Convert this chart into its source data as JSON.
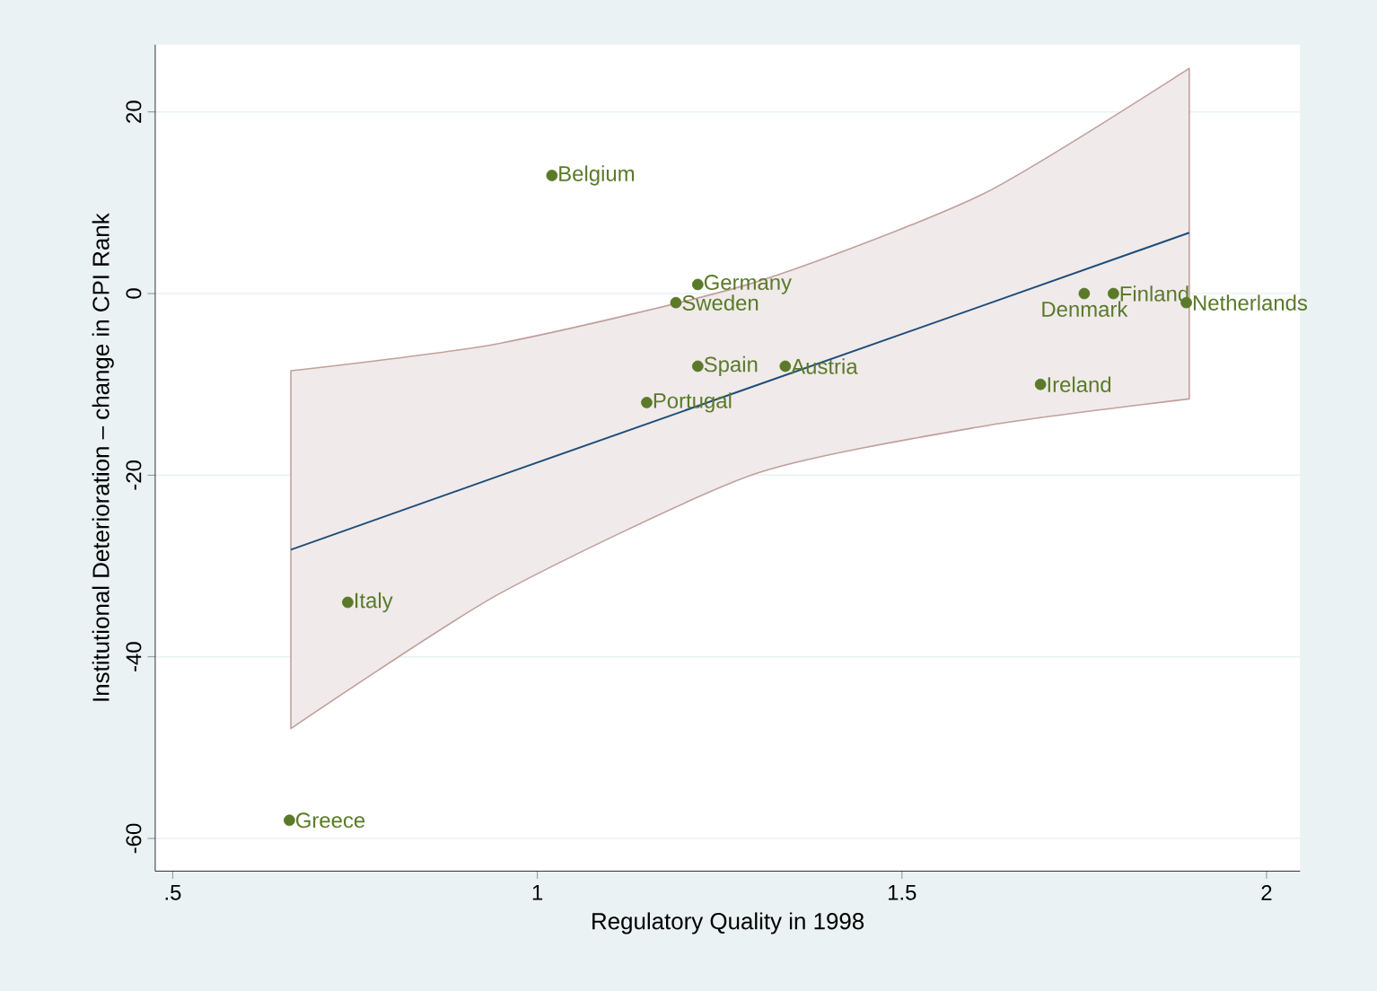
{
  "chart_data": {
    "type": "scatter",
    "xlabel": "Regulatory Quality in 1998",
    "ylabel": "Institutional Deterioration – change in CPI Rank",
    "xlim": [
      0.476,
      2.046
    ],
    "ylim": [
      -63.6,
      27.4
    ],
    "xticks": [
      {
        "value": 0.5,
        "label": ".5"
      },
      1,
      1.5,
      2
    ],
    "yticks": [
      -60,
      -40,
      -20,
      0,
      20
    ],
    "grid": "y",
    "series": [
      {
        "marker": "circle",
        "color": "#5a7a2a",
        "x": [
          1.02,
          1.22,
          1.19,
          1.22,
          1.34,
          1.15,
          1.75,
          1.79,
          1.89,
          1.69,
          0.74,
          0.66
        ],
        "values": [
          13,
          1,
          -1,
          -8,
          -8,
          -12,
          0,
          0,
          -1,
          -10,
          -34,
          -58
        ]
      },
      {
        "type": "line",
        "marker": "none",
        "color": "#1f4e79",
        "x": [
          0.662,
          0.947,
          1.297,
          1.612,
          1.894
        ],
        "values": [
          -28.2,
          -20.1,
          -10.2,
          -1.3,
          6.7
        ],
        "lower": [
          -47.9,
          -33.1,
          -19.9,
          -14.6,
          -11.6
        ],
        "upper": [
          -8.5,
          -5.5,
          1.2,
          11,
          24.8
        ]
      }
    ],
    "annotations": [
      {
        "text": "Belgium",
        "x": 1.02,
        "y": 13
      },
      {
        "text": "Germany",
        "x": 1.22,
        "y": 1
      },
      {
        "text": "Sweden",
        "x": 1.19,
        "y": -1
      },
      {
        "text": "Spain",
        "x": 1.22,
        "y": -8
      },
      {
        "text": "Austria",
        "x": 1.34,
        "y": -8
      },
      {
        "text": "Portugal",
        "x": 1.15,
        "y": -12
      },
      {
        "text": "Denmark",
        "x": 1.75,
        "y": 0
      },
      {
        "text": "Finland",
        "x": 1.79,
        "y": 0
      },
      {
        "text": "Netherlands",
        "x": 1.89,
        "y": -1
      },
      {
        "text": "Ireland",
        "x": 1.69,
        "y": -10
      },
      {
        "text": "Italy",
        "x": 0.74,
        "y": -34
      },
      {
        "text": "Greece",
        "x": 0.66,
        "y": -58
      }
    ]
  }
}
